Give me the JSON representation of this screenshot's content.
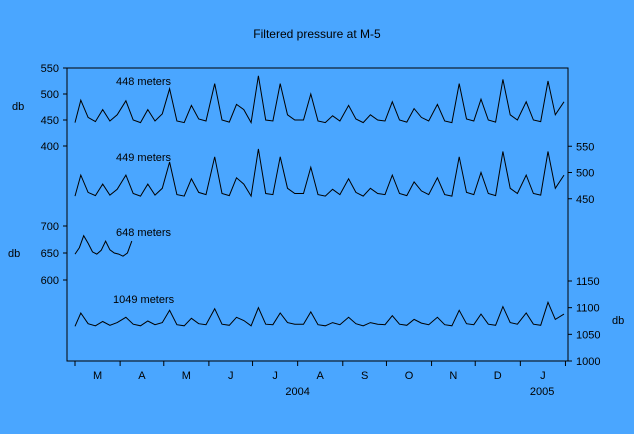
{
  "chart_data": {
    "type": "line",
    "title": "Filtered pressure at M-5",
    "x_tick_labels": [
      "M",
      "A",
      "M",
      "J",
      "J",
      "A",
      "S",
      "O",
      "N",
      "D",
      "J"
    ],
    "x_year_labels": [
      "2004",
      "2005"
    ],
    "y_unit_label": "db",
    "left_y_ticks": [
      "550",
      "500",
      "450",
      "400",
      "700",
      "650",
      "600"
    ],
    "right_y_ticks": [
      "550",
      "500",
      "450",
      "1150",
      "1100",
      "1050",
      "1000"
    ],
    "x_range": [
      "2004-03-01",
      "2005-01-31"
    ],
    "grid": false,
    "series": [
      {
        "name": "448 meters",
        "axis": "left-upper",
        "ylim": [
          400,
          550
        ],
        "x": [
          "2004-03-01",
          "2004-03-05",
          "2004-03-10",
          "2004-03-15",
          "2004-03-20",
          "2004-03-25",
          "2004-03-30",
          "2004-04-05",
          "2004-04-10",
          "2004-04-15",
          "2004-04-20",
          "2004-04-25",
          "2004-04-30",
          "2004-05-05",
          "2004-05-10",
          "2004-05-15",
          "2004-05-20",
          "2004-05-25",
          "2004-05-30",
          "2004-06-05",
          "2004-06-10",
          "2004-06-15",
          "2004-06-20",
          "2004-06-25",
          "2004-06-30",
          "2004-07-05",
          "2004-07-10",
          "2004-07-15",
          "2004-07-20",
          "2004-07-25",
          "2004-07-30",
          "2004-08-05",
          "2004-08-10",
          "2004-08-15",
          "2004-08-20",
          "2004-08-25",
          "2004-08-30",
          "2004-09-05",
          "2004-09-10",
          "2004-09-15",
          "2004-09-20",
          "2004-09-25",
          "2004-09-30",
          "2004-10-05",
          "2004-10-10",
          "2004-10-15",
          "2004-10-20",
          "2004-10-25",
          "2004-10-30",
          "2004-11-05",
          "2004-11-10",
          "2004-11-15",
          "2004-11-20",
          "2004-11-25",
          "2004-11-30",
          "2004-12-05",
          "2004-12-10",
          "2004-12-15",
          "2004-12-20",
          "2004-12-25",
          "2004-12-30",
          "2005-01-05",
          "2005-01-10",
          "2005-01-15",
          "2005-01-20",
          "2005-01-25",
          "2005-01-31"
        ],
        "y": [
          445,
          488,
          455,
          447,
          470,
          448,
          460,
          487,
          450,
          445,
          470,
          448,
          462,
          510,
          448,
          445,
          478,
          452,
          448,
          520,
          450,
          446,
          480,
          470,
          445,
          535,
          450,
          448,
          520,
          460,
          450,
          450,
          500,
          448,
          445,
          458,
          448,
          478,
          452,
          445,
          460,
          450,
          448,
          485,
          450,
          446,
          472,
          455,
          448,
          480,
          448,
          445,
          520,
          452,
          448,
          490,
          450,
          446,
          528,
          460,
          450,
          485,
          450,
          447,
          525,
          460,
          485
        ]
      },
      {
        "name": "449 meters",
        "axis": "right-upper",
        "ylim": [
          400,
          600
        ],
        "x": [
          "2004-03-01",
          "2004-03-05",
          "2004-03-10",
          "2004-03-15",
          "2004-03-20",
          "2004-03-25",
          "2004-03-30",
          "2004-04-05",
          "2004-04-10",
          "2004-04-15",
          "2004-04-20",
          "2004-04-25",
          "2004-04-30",
          "2004-05-05",
          "2004-05-10",
          "2004-05-15",
          "2004-05-20",
          "2004-05-25",
          "2004-05-30",
          "2004-06-05",
          "2004-06-10",
          "2004-06-15",
          "2004-06-20",
          "2004-06-25",
          "2004-06-30",
          "2004-07-05",
          "2004-07-10",
          "2004-07-15",
          "2004-07-20",
          "2004-07-25",
          "2004-07-30",
          "2004-08-05",
          "2004-08-10",
          "2004-08-15",
          "2004-08-20",
          "2004-08-25",
          "2004-08-30",
          "2004-09-05",
          "2004-09-10",
          "2004-09-15",
          "2004-09-20",
          "2004-09-25",
          "2004-09-30",
          "2004-10-05",
          "2004-10-10",
          "2004-10-15",
          "2004-10-20",
          "2004-10-25",
          "2004-10-30",
          "2004-11-05",
          "2004-11-10",
          "2004-11-15",
          "2004-11-20",
          "2004-11-25",
          "2004-11-30",
          "2004-12-05",
          "2004-12-10",
          "2004-12-15",
          "2004-12-20",
          "2004-12-25",
          "2004-12-30",
          "2005-01-05",
          "2005-01-10",
          "2005-01-15",
          "2005-01-20",
          "2005-01-25",
          "2005-01-31"
        ],
        "y": [
          455,
          495,
          462,
          456,
          478,
          457,
          468,
          495,
          460,
          455,
          478,
          457,
          470,
          520,
          458,
          455,
          488,
          462,
          458,
          530,
          460,
          456,
          490,
          478,
          455,
          545,
          460,
          458,
          530,
          470,
          460,
          460,
          510,
          458,
          455,
          468,
          458,
          488,
          462,
          455,
          470,
          460,
          458,
          495,
          460,
          456,
          482,
          465,
          458,
          490,
          458,
          455,
          530,
          462,
          458,
          500,
          460,
          456,
          540,
          470,
          460,
          495,
          460,
          457,
          540,
          470,
          495
        ]
      },
      {
        "name": "648 meters",
        "axis": "left-middle",
        "ylim": [
          600,
          700
        ],
        "x": [
          "2004-03-01",
          "2004-03-04",
          "2004-03-07",
          "2004-03-10",
          "2004-03-13",
          "2004-03-16",
          "2004-03-19",
          "2004-03-22",
          "2004-03-25",
          "2004-03-28",
          "2004-03-31",
          "2004-04-03",
          "2004-04-06",
          "2004-04-09"
        ],
        "y": [
          648,
          660,
          682,
          668,
          652,
          648,
          655,
          672,
          656,
          650,
          648,
          644,
          650,
          672
        ]
      },
      {
        "name": "1049 meters",
        "axis": "right-lower",
        "ylim": [
          1000,
          1150
        ],
        "x": [
          "2004-03-01",
          "2004-03-05",
          "2004-03-10",
          "2004-03-15",
          "2004-03-20",
          "2004-03-25",
          "2004-03-30",
          "2004-04-05",
          "2004-04-10",
          "2004-04-15",
          "2004-04-20",
          "2004-04-25",
          "2004-04-30",
          "2004-05-05",
          "2004-05-10",
          "2004-05-15",
          "2004-05-20",
          "2004-05-25",
          "2004-05-30",
          "2004-06-05",
          "2004-06-10",
          "2004-06-15",
          "2004-06-20",
          "2004-06-25",
          "2004-06-30",
          "2004-07-05",
          "2004-07-10",
          "2004-07-15",
          "2004-07-20",
          "2004-07-25",
          "2004-07-30",
          "2004-08-05",
          "2004-08-10",
          "2004-08-15",
          "2004-08-20",
          "2004-08-25",
          "2004-08-30",
          "2004-09-05",
          "2004-09-10",
          "2004-09-15",
          "2004-09-20",
          "2004-09-25",
          "2004-09-30",
          "2004-10-05",
          "2004-10-10",
          "2004-10-15",
          "2004-10-20",
          "2004-10-25",
          "2004-10-30",
          "2004-11-05",
          "2004-11-10",
          "2004-11-15",
          "2004-11-20",
          "2004-11-25",
          "2004-11-30",
          "2004-12-05",
          "2004-12-10",
          "2004-12-15",
          "2004-12-20",
          "2004-12-25",
          "2004-12-30",
          "2005-01-05",
          "2005-01-10",
          "2005-01-15",
          "2005-01-20",
          "2005-01-25",
          "2005-01-31"
        ],
        "y": [
          1065,
          1090,
          1070,
          1066,
          1074,
          1067,
          1072,
          1082,
          1069,
          1066,
          1075,
          1068,
          1072,
          1095,
          1068,
          1066,
          1080,
          1070,
          1068,
          1098,
          1069,
          1067,
          1082,
          1076,
          1066,
          1100,
          1069,
          1068,
          1090,
          1072,
          1069,
          1069,
          1092,
          1068,
          1066,
          1072,
          1068,
          1082,
          1070,
          1066,
          1072,
          1069,
          1068,
          1085,
          1069,
          1067,
          1078,
          1071,
          1068,
          1082,
          1068,
          1066,
          1095,
          1070,
          1068,
          1088,
          1069,
          1067,
          1102,
          1072,
          1069,
          1090,
          1069,
          1067,
          1110,
          1078,
          1088
        ]
      }
    ]
  }
}
